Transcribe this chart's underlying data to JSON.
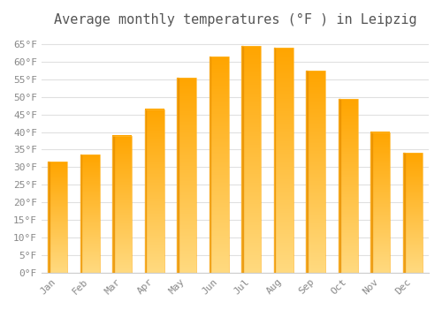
{
  "months": [
    "Jan",
    "Feb",
    "Mar",
    "Apr",
    "May",
    "Jun",
    "Jul",
    "Aug",
    "Sep",
    "Oct",
    "Nov",
    "Dec"
  ],
  "values": [
    31.5,
    33.5,
    39.0,
    46.5,
    55.5,
    61.5,
    64.5,
    64.0,
    57.5,
    49.5,
    40.0,
    34.0
  ],
  "bar_color_top": "#FFB600",
  "bar_color_bottom": "#FFDA80",
  "bar_color_left_edge": "#E89000",
  "title": "Average monthly temperatures (°F ) in Leipzig",
  "ylim": [
    0,
    68
  ],
  "yticks": [
    0,
    5,
    10,
    15,
    20,
    25,
    30,
    35,
    40,
    45,
    50,
    55,
    60,
    65
  ],
  "ytick_labels": [
    "0°F",
    "5°F",
    "10°F",
    "15°F",
    "20°F",
    "25°F",
    "30°F",
    "35°F",
    "40°F",
    "45°F",
    "50°F",
    "55°F",
    "60°F",
    "65°F"
  ],
  "background_color": "#ffffff",
  "grid_color": "#e0e0e0",
  "title_fontsize": 11,
  "tick_fontsize": 8,
  "font_family": "monospace",
  "title_color": "#555555",
  "tick_color": "#888888"
}
